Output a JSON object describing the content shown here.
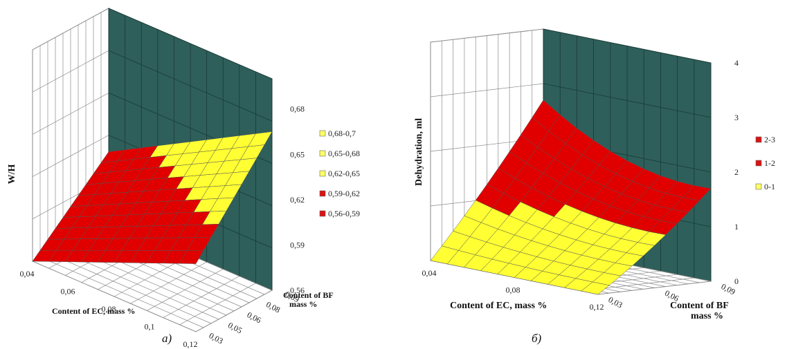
{
  "colors": {
    "wall": "#2f5f5a",
    "wall_grid": "#173a37",
    "side_wall": "#ffffff",
    "floor": "#ffffff",
    "grid": "#8a8a8a",
    "red": "#e00000",
    "yellow": "#ffff33",
    "edge": "#555555"
  },
  "chart_data": [
    {
      "type": "surface",
      "panel_caption": "a)",
      "zlabel": "W/H",
      "xlabel": "Content of EC, mass %",
      "ylabel_line1": "Content of BF",
      "ylabel_line2": "mass %",
      "x_ticks": [
        "0,04",
        "0,06",
        "0,08",
        "0,1",
        "0,12"
      ],
      "y_ticks": [
        "0,03",
        "0,05",
        "0,06",
        "0,08",
        "0,09"
      ],
      "z_ticks": [
        "0,56",
        "0,59",
        "0,62",
        "0,65",
        "0,68"
      ],
      "zlim": [
        0.56,
        0.7
      ],
      "surface_corners": {
        "ec_min_bf_min": 0.56,
        "ec_max_bf_min": 0.605,
        "ec_min_bf_max": 0.605,
        "ec_max_bf_max": 0.665
      },
      "legend": [
        {
          "label": "0,68-0,7",
          "color": "#ffff66"
        },
        {
          "label": "0,65-0,68",
          "color": "#ffff66"
        },
        {
          "label": "0,62-0,65",
          "color": "#ffff66"
        },
        {
          "label": "0,59-0,62",
          "color": "#dd1111"
        },
        {
          "label": "0,56-0,59",
          "color": "#dd1111"
        }
      ]
    },
    {
      "type": "surface",
      "panel_caption": "б)",
      "zlabel": "Dehydration, ml",
      "xlabel": "Content of EC, mass %",
      "ylabel_line1": "Content of BF",
      "ylabel_line2": "mass %",
      "x_ticks": [
        "0,04",
        "0,08",
        "0,12"
      ],
      "y_ticks": [
        "0,03",
        "0,06",
        "0,09"
      ],
      "z_ticks": [
        "0",
        "1",
        "2",
        "3",
        "4"
      ],
      "zlim": [
        0,
        4
      ],
      "surface_corners": {
        "ec_min_bf_max": 2.4,
        "ec_max_bf_max": 1.4,
        "ec_min_bf_min": 0.0,
        "ec_max_bf_min": 0.0
      },
      "legend": [
        {
          "label": "2-3",
          "color": "#dd1111"
        },
        {
          "label": "1-2",
          "color": "#dd1111"
        },
        {
          "label": "0-1",
          "color": "#ffff66"
        }
      ]
    }
  ]
}
